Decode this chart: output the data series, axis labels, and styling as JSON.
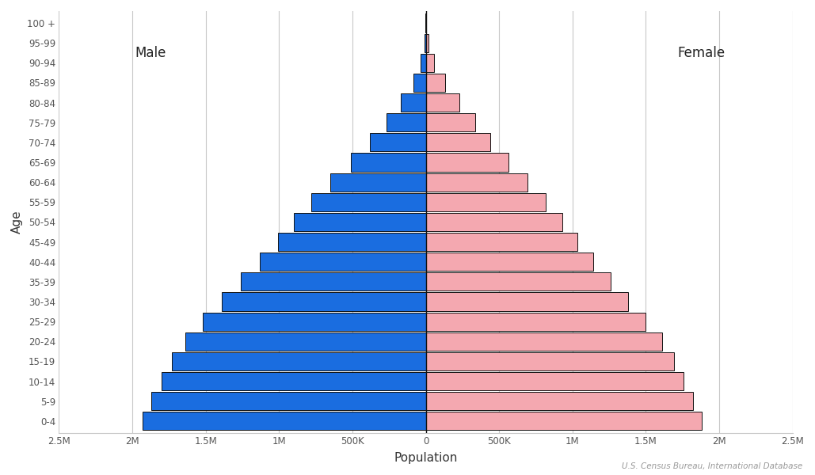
{
  "age_groups": [
    "0-4",
    "5-9",
    "10-14",
    "15-19",
    "20-24",
    "25-29",
    "30-34",
    "35-39",
    "40-44",
    "45-49",
    "50-54",
    "55-59",
    "60-64",
    "65-69",
    "70-74",
    "75-79",
    "80-84",
    "85-89",
    "90-94",
    "95-99",
    "100 +"
  ],
  "male": [
    1930000,
    1870000,
    1800000,
    1730000,
    1640000,
    1520000,
    1390000,
    1260000,
    1130000,
    1010000,
    900000,
    780000,
    650000,
    510000,
    380000,
    270000,
    170000,
    85000,
    33000,
    9000,
    1500
  ],
  "female": [
    1880000,
    1820000,
    1755000,
    1690000,
    1610000,
    1500000,
    1380000,
    1260000,
    1140000,
    1035000,
    930000,
    815000,
    695000,
    565000,
    440000,
    335000,
    230000,
    130000,
    57000,
    18000,
    4000
  ],
  "male_color": "#1a6de0",
  "female_color": "#f4a8b0",
  "bar_edge_color": "#111111",
  "bar_edge_width": 0.7,
  "xlim": 2500000,
  "xlabel": "Population",
  "ylabel": "Age",
  "male_label": "Male",
  "female_label": "Female",
  "source_text": "U.S. Census Bureau, International Database",
  "grid_color": "#c8c8c8",
  "background_color": "#ffffff",
  "tick_color": "#555555",
  "label_color": "#333333",
  "centerline_color": "#111111",
  "tick_vals": [
    -2500000,
    -2000000,
    -1500000,
    -1000000,
    -500000,
    0,
    500000,
    1000000,
    1500000,
    2000000,
    2500000
  ],
  "tick_labels": [
    "2.5M",
    "2M",
    "1.5M",
    "1M",
    "500K",
    "0",
    "500K",
    "1M",
    "1.5M",
    "2M",
    "2.5M"
  ]
}
